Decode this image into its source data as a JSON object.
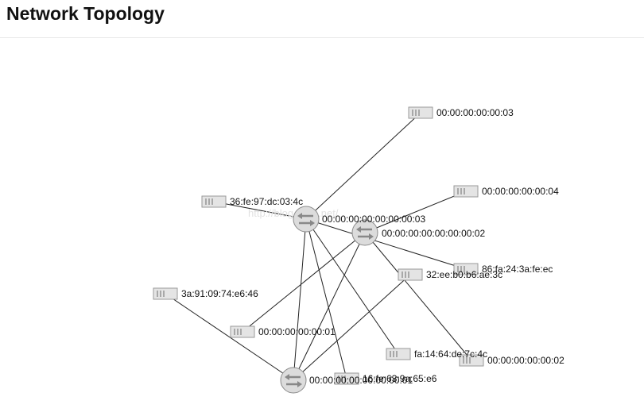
{
  "page": {
    "title": "Network Topology"
  },
  "watermark": "http://blog.csdn.net/",
  "topology": {
    "switches": [
      {
        "id": "s3",
        "label": "00:00:00:00:00:00:00:03"
      },
      {
        "id": "s2",
        "label": "00:00:00:00:00:00:00:02"
      },
      {
        "id": "s1",
        "label": "00:00:00:00:00:00:00:01"
      }
    ],
    "hosts": [
      {
        "id": "h1",
        "label": "00:00:00:00:00:03"
      },
      {
        "id": "h2",
        "label": "00:00:00:00:00:04"
      },
      {
        "id": "h3",
        "label": "36:fe:97:dc:03:4c"
      },
      {
        "id": "h4",
        "label": "86:fa:24:3a:fe:ec"
      },
      {
        "id": "h5",
        "label": "32:ee:b0:b6:ae:3c"
      },
      {
        "id": "h6",
        "label": "3a:91:09:74:e6:46"
      },
      {
        "id": "h7",
        "label": "00:00:00:00:00:01"
      },
      {
        "id": "h8",
        "label": "fa:14:64:de:7c:4c"
      },
      {
        "id": "h9",
        "label": "00:00:00:00:00:02"
      },
      {
        "id": "h10",
        "label": "16:fe:63:9a:65:e6"
      }
    ],
    "links": [
      [
        "s3",
        "h1"
      ],
      [
        "s3",
        "h3"
      ],
      [
        "s3",
        "h4"
      ],
      [
        "s3",
        "s1"
      ],
      [
        "s3",
        "h8"
      ],
      [
        "s3",
        "h10"
      ],
      [
        "s2",
        "h2"
      ],
      [
        "s2",
        "h7"
      ],
      [
        "s2",
        "h9"
      ],
      [
        "s2",
        "s1"
      ],
      [
        "s1",
        "h6"
      ],
      [
        "s1",
        "h5"
      ]
    ]
  }
}
